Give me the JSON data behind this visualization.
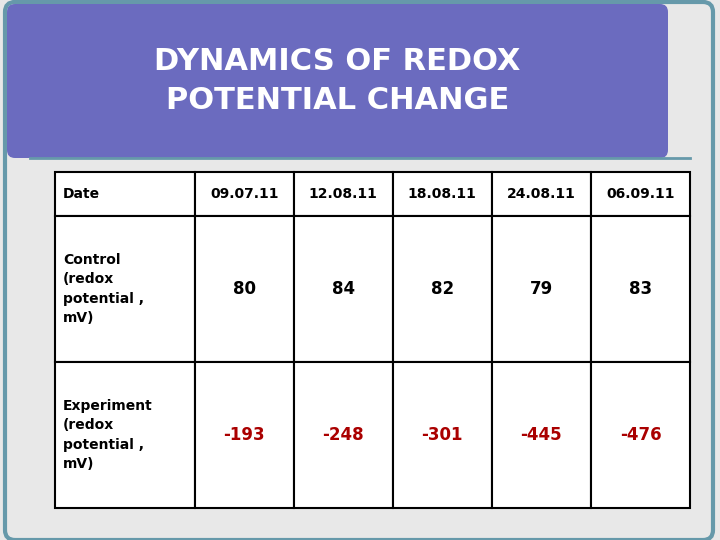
{
  "title_line1": "DYNAMICS OF REDOX",
  "title_line2": "POTENTIAL CHANGE",
  "title_bg_color": "#6B6BBF",
  "title_text_color": "#FFFFFF",
  "outer_bg_color": "#E8E8E8",
  "border_color": "#6699AA",
  "col_headers": [
    "Date",
    "09.07.11",
    "12.08.11",
    "18.08.11",
    "24.08.11",
    "06.09.11"
  ],
  "row1_label": "Control\n(redox\npotential ,\nmV)",
  "row1_values": [
    "80",
    "84",
    "82",
    "79",
    "83"
  ],
  "row1_color": "#000000",
  "row2_label": "Experiment\n(redox\npotential ,\nmV)",
  "row2_values": [
    "-193",
    "-248",
    "-301",
    "-445",
    "-476"
  ],
  "row2_color": "#AA0000",
  "table_border_color": "#000000",
  "table_text_color": "#000000",
  "figsize": [
    7.2,
    5.4
  ],
  "dpi": 100
}
